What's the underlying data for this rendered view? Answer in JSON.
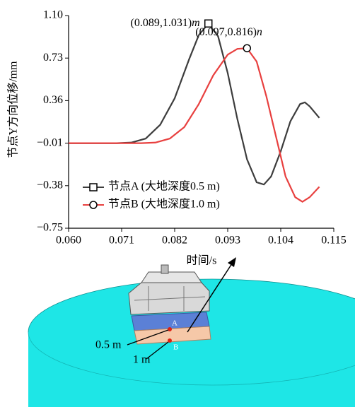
{
  "chart_data": {
    "type": "line",
    "y_label": "节点Y方向位移/mm",
    "x_label": "时间/s",
    "xlim": [
      0.06,
      0.115
    ],
    "xticks": [
      {
        "value": 0.06,
        "label": "0.060"
      },
      {
        "value": 0.071,
        "label": "0.071"
      },
      {
        "value": 0.082,
        "label": "0.082"
      },
      {
        "value": 0.093,
        "label": "0.093"
      },
      {
        "value": 0.104,
        "label": "0.104"
      },
      {
        "value": 0.115,
        "label": "0.115"
      }
    ],
    "ylim": [
      -0.75,
      1.1
    ],
    "yticks": [
      {
        "value": 1.1,
        "label": "1.10"
      },
      0.73,
      0.36,
      {
        "value": -0.01,
        "label": "−0.01"
      },
      {
        "value": -0.38,
        "label": "−0.38"
      },
      {
        "value": -0.75,
        "label": "−0.75"
      }
    ],
    "legend": "lower-left",
    "series": [
      {
        "name": "节点A (大地深度0.5 m)",
        "color": "#3d3d3d",
        "marker": "square",
        "peak_index": 8,
        "x": [
          0.06,
          0.07,
          0.073,
          0.076,
          0.079,
          0.082,
          0.085,
          0.087,
          0.089,
          0.091,
          0.093,
          0.095,
          0.097,
          0.099,
          0.1005,
          0.102,
          0.104,
          0.106,
          0.108,
          0.109,
          0.11,
          0.112
        ],
        "values": [
          -0.01,
          -0.01,
          -0.005,
          0.03,
          0.15,
          0.38,
          0.72,
          0.93,
          1.031,
          0.92,
          0.6,
          0.2,
          -0.15,
          -0.35,
          -0.37,
          -0.3,
          -0.08,
          0.18,
          0.33,
          0.345,
          0.31,
          0.21
        ]
      },
      {
        "name": "节点B (大地深度1.0 m)",
        "color": "#e8403f",
        "marker": "circle",
        "peak_index": 9,
        "x": [
          0.06,
          0.075,
          0.078,
          0.081,
          0.084,
          0.087,
          0.09,
          0.093,
          0.095,
          0.097,
          0.099,
          0.101,
          0.103,
          0.105,
          0.107,
          0.1085,
          0.11,
          0.112
        ],
        "values": [
          -0.01,
          -0.01,
          -0.005,
          0.03,
          0.13,
          0.33,
          0.58,
          0.76,
          0.81,
          0.816,
          0.7,
          0.4,
          0.05,
          -0.3,
          -0.48,
          -0.52,
          -0.48,
          -0.39
        ]
      }
    ],
    "annotations": [
      {
        "text": "(0.089,1.031)",
        "suffix": "m"
      },
      {
        "text": "(0.097,0.816)",
        "suffix": "n"
      }
    ]
  },
  "illustration": {
    "depth_a": "0.5 m",
    "depth_b": "1 m",
    "node_a": "A",
    "node_b": "B"
  }
}
